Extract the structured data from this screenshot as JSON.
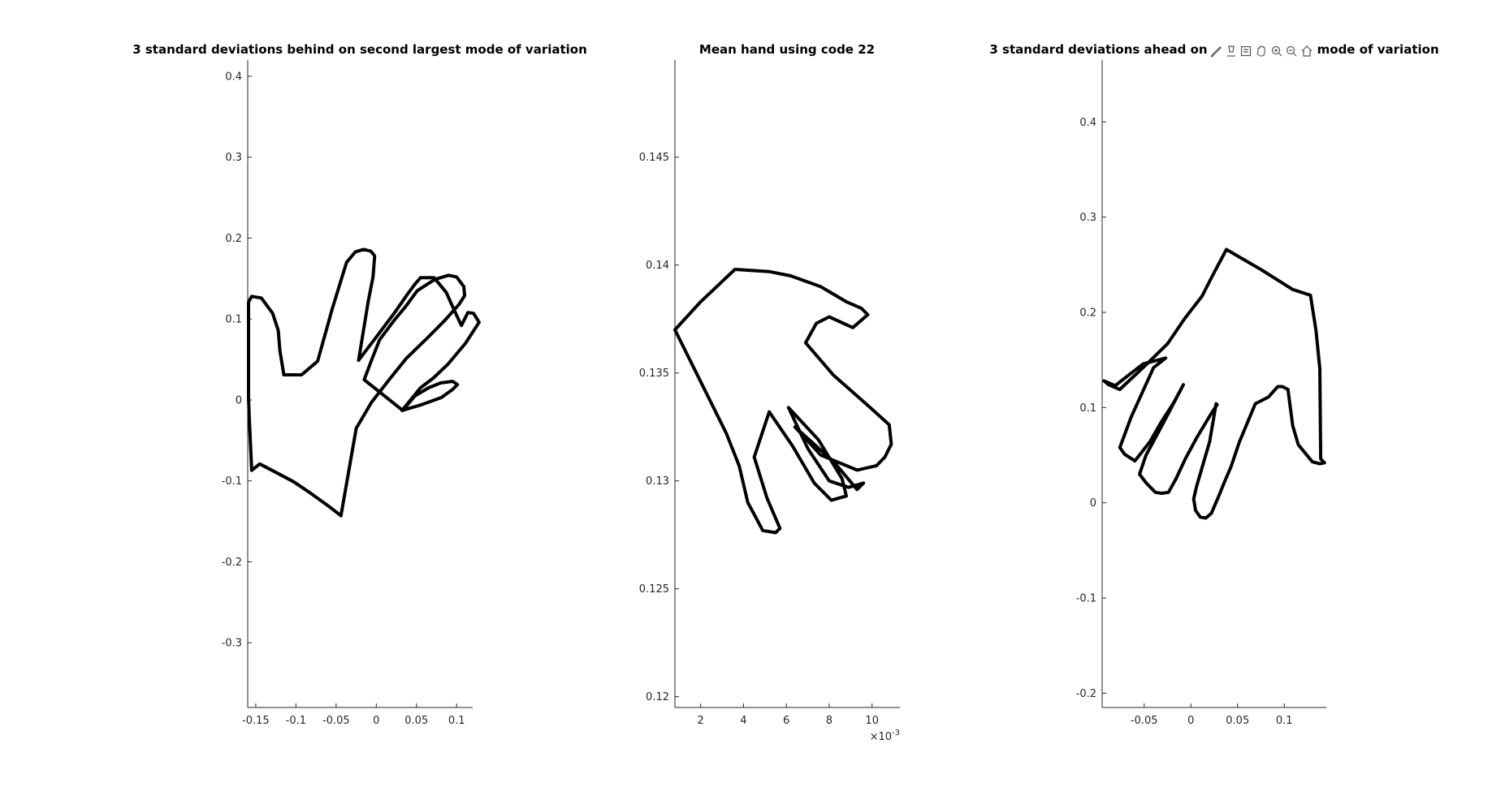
{
  "chart_data": [
    {
      "type": "line",
      "title": "3 standard deviations behind on second largest mode of variation",
      "xlim": [
        -0.16,
        0.12
      ],
      "ylim": [
        -0.38,
        0.42
      ],
      "xticks": [
        -0.15,
        -0.1,
        -0.05,
        0,
        0.05,
        0.1
      ],
      "xtick_labels": [
        "-0.15",
        "-0.1",
        "-0.05",
        "0",
        "0.05",
        "0.1"
      ],
      "yticks": [
        -0.3,
        -0.2,
        -0.1,
        0,
        0.1,
        0.2,
        0.3,
        0.4
      ],
      "ytick_labels": [
        "-0.3",
        "-0.2",
        "-0.1",
        "0",
        "0.1",
        "0.2",
        "0.3",
        "0.4"
      ],
      "x": [
        -0.044,
        -0.061,
        -0.082,
        -0.103,
        -0.124,
        -0.145,
        -0.155,
        -0.158,
        -0.159,
        -0.159,
        -0.159,
        -0.155,
        -0.143,
        -0.129,
        -0.122,
        -0.12,
        -0.115,
        -0.106,
        -0.093,
        -0.073,
        -0.055,
        -0.037,
        -0.026,
        -0.016,
        -0.007,
        -0.002,
        -0.004,
        -0.01,
        -0.022,
        0.001,
        0.023,
        0.039,
        0.048,
        0.055,
        0.072,
        0.087,
        0.097,
        0.106,
        0.114,
        0.121,
        0.128,
        0.111,
        0.089,
        0.071,
        0.055,
        0.032,
        0.056,
        0.081,
        0.095,
        0.101,
        0.095,
        0.08,
        0.065,
        0.048,
        0.033,
        -0.015,
        -0.006,
        0.004,
        0.022,
        0.037,
        0.051,
        0.073,
        0.09,
        0.1,
        0.109,
        0.11,
        0.103,
        0.085,
        0.063,
        0.037,
        0.016,
        -0.006,
        -0.025,
        -0.044
      ],
      "y": [
        -0.143,
        -0.13,
        -0.115,
        -0.101,
        -0.09,
        -0.079,
        -0.087,
        -0.024,
        0.002,
        0.05,
        0.121,
        0.128,
        0.126,
        0.107,
        0.086,
        0.061,
        0.031,
        0.031,
        0.031,
        0.048,
        0.112,
        0.17,
        0.183,
        0.186,
        0.184,
        0.178,
        0.152,
        0.122,
        0.049,
        0.079,
        0.108,
        0.131,
        0.143,
        0.151,
        0.151,
        0.133,
        0.111,
        0.092,
        0.108,
        0.107,
        0.096,
        0.07,
        0.044,
        0.027,
        0.015,
        -0.013,
        -0.006,
        0.003,
        0.013,
        0.019,
        0.023,
        0.021,
        0.015,
        0.005,
        -0.013,
        0.025,
        0.049,
        0.074,
        0.098,
        0.116,
        0.135,
        0.149,
        0.154,
        0.152,
        0.14,
        0.129,
        0.118,
        0.098,
        0.076,
        0.051,
        0.025,
        -0.003,
        -0.035,
        -0.143
      ],
      "line_color": "#000000",
      "grid": false
    },
    {
      "type": "line",
      "title": "Mean hand using code 22",
      "xlim": [
        0.0008,
        0.0113
      ],
      "ylim": [
        0.1195,
        0.1495
      ],
      "xticks": [
        0.002,
        0.004,
        0.006,
        0.008,
        0.01
      ],
      "xtick_labels": [
        "2",
        "4",
        "6",
        "8",
        "10"
      ],
      "x_exponent_label": "×10",
      "x_exponent_power": "-3",
      "yticks": [
        0.12,
        0.125,
        0.13,
        0.135,
        0.14,
        0.145
      ],
      "ytick_labels": [
        "0.12",
        "0.125",
        "0.13",
        "0.135",
        "0.14",
        "0.145"
      ],
      "x": [
        0.0008,
        0.002,
        0.0036,
        0.0052,
        0.0062,
        0.0076,
        0.0088,
        0.0095,
        0.0098,
        0.0091,
        0.008,
        0.0074,
        0.0069,
        0.0082,
        0.0098,
        0.0108,
        0.0109,
        0.0106,
        0.0102,
        0.0093,
        0.0076,
        0.0064,
        0.0082,
        0.0093,
        0.0096,
        0.0089,
        0.008,
        0.007,
        0.0061,
        0.0075,
        0.0086,
        0.0088,
        0.0081,
        0.0073,
        0.0063,
        0.0052,
        0.0045,
        0.0051,
        0.0057,
        0.0055,
        0.0049,
        0.0042,
        0.0038,
        0.0032,
        0.0019,
        0.0008
      ],
      "y": [
        0.137,
        0.1383,
        0.1398,
        0.1397,
        0.1395,
        0.139,
        0.1383,
        0.138,
        0.1377,
        0.1371,
        0.1376,
        0.1373,
        0.1364,
        0.1349,
        0.1335,
        0.1326,
        0.1317,
        0.1311,
        0.1307,
        0.1305,
        0.1312,
        0.1325,
        0.1309,
        0.1296,
        0.1299,
        0.1297,
        0.13,
        0.1315,
        0.1334,
        0.1319,
        0.1301,
        0.1293,
        0.1291,
        0.1299,
        0.1316,
        0.1332,
        0.1311,
        0.1292,
        0.1278,
        0.1276,
        0.1277,
        0.129,
        0.1307,
        0.1322,
        0.1348,
        0.137
      ],
      "line_color": "#000000",
      "grid": false
    },
    {
      "type": "line",
      "title": "3 standard deviations ahead on second largest mode of variation",
      "xlim": [
        -0.095,
        0.145
      ],
      "ylim": [
        -0.215,
        0.465
      ],
      "xticks": [
        -0.05,
        0,
        0.05,
        0.1
      ],
      "xtick_labels": [
        "-0.05",
        "0",
        "0.05",
        "0.1"
      ],
      "yticks": [
        -0.2,
        -0.1,
        0,
        0.1,
        0.2,
        0.3,
        0.4
      ],
      "ytick_labels": [
        "-0.2",
        "-0.1",
        "0",
        "0.1",
        "0.2",
        "0.3",
        "0.4"
      ],
      "x": [
        0.038,
        0.075,
        0.109,
        0.128,
        0.134,
        0.138,
        0.139,
        0.143,
        0.138,
        0.13,
        0.115,
        0.109,
        0.104,
        0.098,
        0.093,
        0.083,
        0.069,
        0.052,
        0.043,
        0.036,
        0.029,
        0.022,
        0.016,
        0.01,
        0.005,
        0.003,
        0.006,
        0.02,
        0.027,
        0.028,
        0.022,
        0.006,
        -0.006,
        -0.016,
        -0.024,
        -0.031,
        -0.038,
        -0.048,
        -0.055,
        -0.048,
        -0.03,
        -0.008,
        -0.019,
        -0.031,
        -0.044,
        -0.06,
        -0.071,
        -0.076,
        -0.064,
        -0.04,
        -0.027,
        -0.027,
        -0.051,
        -0.068,
        -0.081,
        -0.093,
        -0.088,
        -0.076,
        -0.049,
        -0.025,
        -0.007,
        0.012,
        0.024,
        0.038
      ],
      "y": [
        0.266,
        0.245,
        0.224,
        0.218,
        0.181,
        0.141,
        0.046,
        0.042,
        0.041,
        0.043,
        0.061,
        0.081,
        0.119,
        0.122,
        0.122,
        0.111,
        0.104,
        0.064,
        0.038,
        0.022,
        0.005,
        -0.011,
        -0.016,
        -0.015,
        -0.008,
        0.004,
        0.017,
        0.064,
        0.104,
        0.103,
        0.094,
        0.068,
        0.046,
        0.025,
        0.011,
        0.01,
        0.011,
        0.021,
        0.03,
        0.05,
        0.083,
        0.124,
        0.104,
        0.086,
        0.064,
        0.044,
        0.051,
        0.058,
        0.09,
        0.142,
        0.152,
        0.152,
        0.146,
        0.133,
        0.123,
        0.128,
        0.124,
        0.119,
        0.144,
        0.167,
        0.193,
        0.217,
        0.24,
        0.266
      ],
      "line_color": "#000000",
      "grid": false
    }
  ],
  "toolbar": {
    "icons": [
      "brush-icon",
      "data-tip-icon",
      "legend-icon",
      "pan-icon",
      "zoom-in-icon",
      "zoom-out-icon",
      "home-icon"
    ]
  }
}
